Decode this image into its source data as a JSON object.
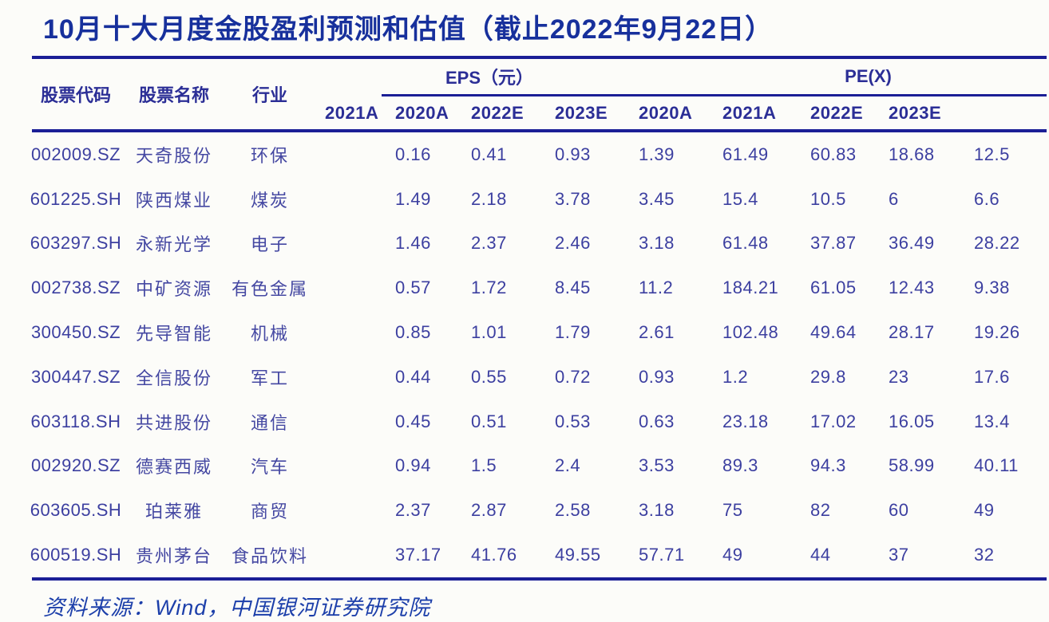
{
  "title": "10月十大月度金股盈利预测和估值（截止2022年9月22日）",
  "source_note": "资料来源：Wind，中国银河证券研究院",
  "colors": {
    "title_blue": "#17309c",
    "rule_navy": "#1b1f96",
    "text_indigo": "#3c3fa0",
    "background": "#fcfcf9"
  },
  "chart_data": {
    "type": "table",
    "title": "10月十大月度金股盈利预测和估值（截止2022年9月22日）",
    "source_note": "资料来源：Wind，中国银河证券研究院",
    "columns": {
      "code": "股票代码",
      "name": "股票名称",
      "industry": "行业",
      "eps_group": "EPS（元）",
      "pe_group": "PE(X)",
      "years": [
        "2020A",
        "2021A",
        "2022E",
        "2023E",
        "2020A",
        "2021A",
        "2022E",
        "2023E"
      ]
    },
    "rows": [
      {
        "code": "002009.SZ",
        "name": "天奇股份",
        "industry": "环保",
        "eps": [
          "0.16",
          "0.41",
          "0.93",
          "1.39"
        ],
        "pe": [
          "61.49",
          "60.83",
          "18.68",
          "12.5"
        ]
      },
      {
        "code": "601225.SH",
        "name": "陕西煤业",
        "industry": "煤炭",
        "eps": [
          "1.49",
          "2.18",
          "3.78",
          "3.45"
        ],
        "pe": [
          "15.4",
          "10.5",
          "6",
          "6.6"
        ]
      },
      {
        "code": "603297.SH",
        "name": "永新光学",
        "industry": "电子",
        "eps": [
          "1.46",
          "2.37",
          "2.46",
          "3.18"
        ],
        "pe": [
          "61.48",
          "37.87",
          "36.49",
          "28.22"
        ]
      },
      {
        "code": "002738.SZ",
        "name": "中矿资源",
        "industry": "有色金属",
        "eps": [
          "0.57",
          "1.72",
          "8.45",
          "11.2"
        ],
        "pe": [
          "184.21",
          "61.05",
          "12.43",
          "9.38"
        ]
      },
      {
        "code": "300450.SZ",
        "name": "先导智能",
        "industry": "机械",
        "eps": [
          "0.85",
          "1.01",
          "1.79",
          "2.61"
        ],
        "pe": [
          "102.48",
          "49.64",
          "28.17",
          "19.26"
        ]
      },
      {
        "code": "300447.SZ",
        "name": "全信股份",
        "industry": "军工",
        "eps": [
          "0.44",
          "0.55",
          "0.72",
          "0.93"
        ],
        "pe": [
          "1.2",
          "29.8",
          "23",
          "17.6"
        ]
      },
      {
        "code": "603118.SH",
        "name": "共进股份",
        "industry": "通信",
        "eps": [
          "0.45",
          "0.51",
          "0.53",
          "0.63"
        ],
        "pe": [
          "23.18",
          "17.02",
          "16.05",
          "13.4"
        ]
      },
      {
        "code": "002920.SZ",
        "name": "德赛西威",
        "industry": "汽车",
        "eps": [
          "0.94",
          "1.5",
          "2.4",
          "3.53"
        ],
        "pe": [
          "89.3",
          "94.3",
          "58.99",
          "40.11"
        ]
      },
      {
        "code": "603605.SH",
        "name": "珀莱雅",
        "industry": "商贸",
        "eps": [
          "2.37",
          "2.87",
          "2.58",
          "3.18"
        ],
        "pe": [
          "75",
          "82",
          "60",
          "49"
        ]
      },
      {
        "code": "600519.SH",
        "name": "贵州茅台",
        "industry": "食品饮料",
        "eps": [
          "37.17",
          "41.76",
          "49.55",
          "57.71"
        ],
        "pe": [
          "49",
          "44",
          "37",
          "32"
        ]
      }
    ]
  }
}
